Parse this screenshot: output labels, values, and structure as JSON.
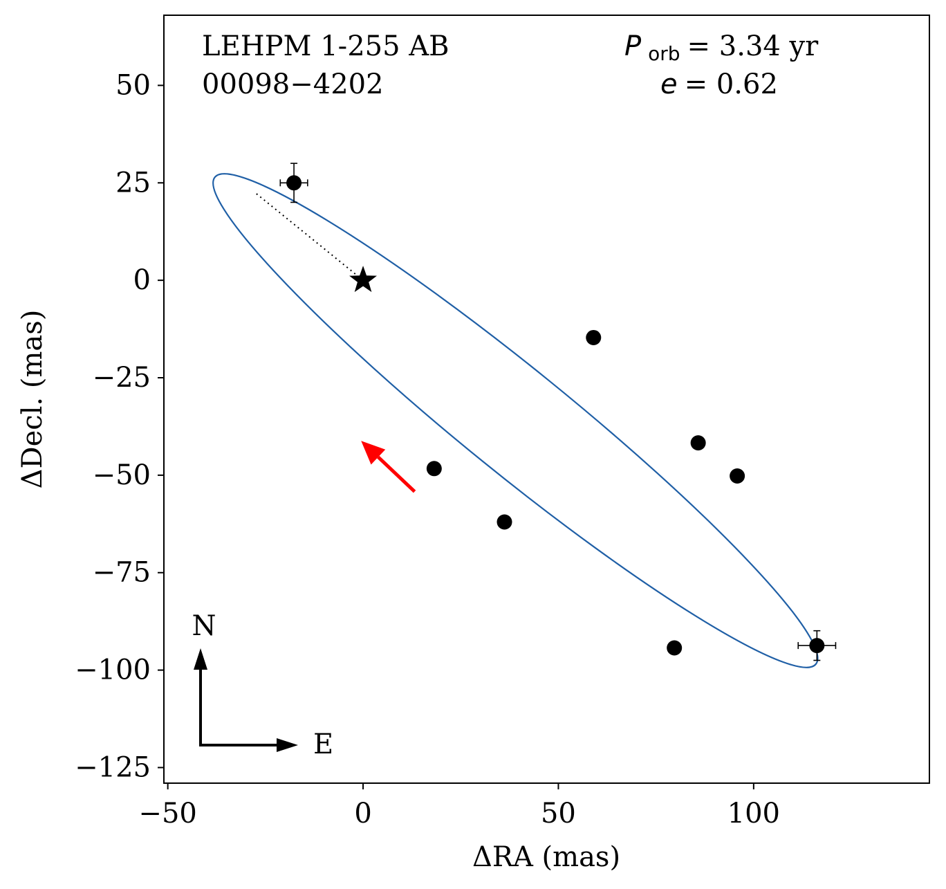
{
  "chart_data": {
    "type": "scatter",
    "title_lines": [
      "LEHPM 1-255 AB",
      "00098−4202"
    ],
    "orbit_params": {
      "period_symbol": "P",
      "period_sub": "orb",
      "period_text": " =  3.34 yr",
      "ecc_symbol": "e",
      "ecc_text": " = 0.62"
    },
    "xlabel": "ΔRA  (mas)",
    "ylabel": "ΔDecl.  (mas)",
    "xlim": [
      -51,
      145
    ],
    "ylim": [
      -129,
      68
    ],
    "xticks": [
      -50,
      0,
      50,
      100
    ],
    "xtick_labels": [
      "−50",
      "0",
      "50",
      "100"
    ],
    "yticks": [
      50,
      25,
      0,
      -25,
      -50,
      -75,
      -100,
      -125
    ],
    "ytick_labels": [
      "50",
      "25",
      "0",
      "−25",
      "−50",
      "−75",
      "−100",
      "−125"
    ],
    "primary_star": {
      "x": 0,
      "y": 0
    },
    "points": [
      {
        "x": -17.7,
        "y": 25.0,
        "xerr": 3.5,
        "yerr": 5.0
      },
      {
        "x": 59.0,
        "y": -14.7,
        "xerr": 1.5,
        "yerr": 1.0
      },
      {
        "x": 85.8,
        "y": -41.7,
        "xerr": 1.5,
        "yerr": 1.0
      },
      {
        "x": 95.8,
        "y": -50.2,
        "xerr": 1.0,
        "yerr": 1.0
      },
      {
        "x": 18.2,
        "y": -48.3,
        "xerr": 1.0,
        "yerr": 1.5
      },
      {
        "x": 36.2,
        "y": -62.0,
        "xerr": 1.0,
        "yerr": 1.5
      },
      {
        "x": 79.7,
        "y": -94.3,
        "xerr": 0.8,
        "yerr": 0.8
      },
      {
        "x": 116.2,
        "y": -93.7,
        "xerr": 4.8,
        "yerr": 3.8
      }
    ],
    "orbit_ellipse": {
      "center": [
        39.0,
        -36.0
      ],
      "semi_major": 99.0,
      "semi_minor": 13.4,
      "angle_deg": 39.0,
      "color": "#1f5fa6"
    },
    "periastron_line": {
      "from": [
        -27.3,
        22.2
      ],
      "to": [
        0,
        0
      ]
    },
    "motion_arrow": {
      "from": [
        13.2,
        -54.2
      ],
      "to": [
        -0.5,
        -41.2
      ],
      "color": "#ff0000"
    },
    "compass": {
      "north_label": "N",
      "east_label": "E"
    }
  }
}
